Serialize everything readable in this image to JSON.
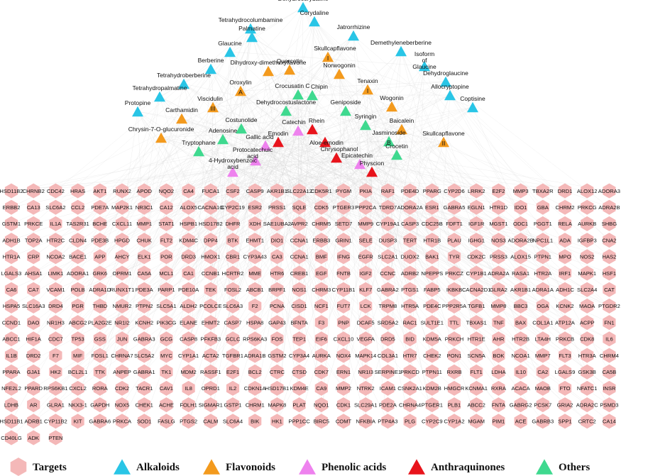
{
  "colors": {
    "targets": "#f4b8b8",
    "alkaloids": "#29c5e6",
    "flavonoids": "#f39a1d",
    "phenolic_acids": "#ee82ee",
    "anthraquinones": "#e8141c",
    "others": "#3fd98f",
    "edge": "#d4d4d4"
  },
  "legend": [
    {
      "label": "Targets",
      "shape": "hexagon",
      "color": "#f4b8b8"
    },
    {
      "label": "Alkaloids",
      "shape": "triangle",
      "color": "#29c5e6"
    },
    {
      "label": "Flavonoids",
      "shape": "triangle",
      "color": "#f39a1d"
    },
    {
      "label": "Phenolic acids",
      "shape": "triangle",
      "color": "#ee82ee"
    },
    {
      "label": "Anthraquinones",
      "shape": "triangle",
      "color": "#e8141c"
    },
    {
      "label": "Others",
      "shape": "triangle",
      "color": "#3fd98f"
    }
  ],
  "compounds": [
    {
      "label": "Dehydrocorydaline",
      "group": "alkaloids"
    },
    {
      "label": "Tetrahydrocolumbamine",
      "group": "alkaloids"
    },
    {
      "label": "Corydaline",
      "group": "alkaloids"
    },
    {
      "label": "Palmatine",
      "group": "alkaloids"
    },
    {
      "label": "Jatrorrhizine",
      "group": "alkaloids"
    },
    {
      "label": "Glaucine",
      "group": "alkaloids"
    },
    {
      "label": "Demethyleneberberine",
      "group": "alkaloids"
    },
    {
      "label": "Isoform of Glaucine",
      "group": "alkaloids"
    },
    {
      "label": "Berberine",
      "group": "alkaloids"
    },
    {
      "label": "Dehydroglaucine",
      "group": "alkaloids"
    },
    {
      "label": "Tetrahydroberberine",
      "group": "alkaloids"
    },
    {
      "label": "Allocryptopine",
      "group": "alkaloids"
    },
    {
      "label": "Tetrahydropalmatine",
      "group": "alkaloids"
    },
    {
      "label": "Protopine",
      "group": "alkaloids"
    },
    {
      "label": "Coptisine",
      "group": "alkaloids"
    },
    {
      "label": "Skullcapflavone I",
      "group": "flavonoids"
    },
    {
      "label": "Quercetin",
      "group": "flavonoids"
    },
    {
      "label": "Dihydroxy-dimethoxyflavone",
      "group": "flavonoids"
    },
    {
      "label": "Norwogonin",
      "group": "flavonoids"
    },
    {
      "label": "Oroxylin A",
      "group": "flavonoids"
    },
    {
      "label": "Tenaxin I",
      "group": "flavonoids"
    },
    {
      "label": "Viscidulin III",
      "group": "flavonoids"
    },
    {
      "label": "Wogonin",
      "group": "flavonoids"
    },
    {
      "label": "Carthamidin",
      "group": "flavonoids"
    },
    {
      "label": "Baicalein",
      "group": "flavonoids"
    },
    {
      "label": "Chrysin-7-O-glucuronide",
      "group": "flavonoids"
    },
    {
      "label": "Skullcapflavone II",
      "group": "flavonoids"
    },
    {
      "label": "Crocusatin C",
      "group": "others"
    },
    {
      "label": "Chipin",
      "group": "others"
    },
    {
      "label": "Dehydrocostuslactone",
      "group": "others"
    },
    {
      "label": "Geniposide",
      "group": "others"
    },
    {
      "label": "Costunolide",
      "group": "others"
    },
    {
      "label": "Adenosine",
      "group": "others"
    },
    {
      "label": "Syringin",
      "group": "others"
    },
    {
      "label": "Jasminoside B",
      "group": "others"
    },
    {
      "label": "Tryptophane",
      "group": "others"
    },
    {
      "label": "Crocetin",
      "group": "others"
    },
    {
      "label": "Catechin",
      "group": "phenolic_acids"
    },
    {
      "label": "Gallic acid",
      "group": "phenolic_acids"
    },
    {
      "label": "Protocatechuic acid",
      "group": "phenolic_acids"
    },
    {
      "label": "4-Hydroxybenzoic acid",
      "group": "phenolic_acids"
    },
    {
      "label": "Epicatechin",
      "group": "phenolic_acids"
    },
    {
      "label": "Rhein",
      "group": "anthraquinones"
    },
    {
      "label": "Emodin",
      "group": "anthraquinones"
    },
    {
      "label": "Aloe-emodin",
      "group": "anthraquinones"
    },
    {
      "label": "Chrysophanol",
      "group": "anthraquinones"
    },
    {
      "label": "Physcion",
      "group": "anthraquinones"
    }
  ],
  "targets": [
    [
      "HSD11B2",
      "CHRNB2",
      "CDC42",
      "HRAS",
      "AKT1",
      "RUNX2",
      "APOD",
      "NQO2",
      "CA4",
      "FUCA1",
      "CSF2",
      "CASP9",
      "AKR1B1",
      "SLC22A12",
      "CDK5R1",
      "PYGM",
      "PKIA",
      "RAF1",
      "PDE4D",
      "PPARG",
      "CYP2D6",
      "LRRK2",
      "E2F2",
      "MMP3",
      "TBXA2R",
      "DRD1",
      "ALOX12",
      "ADORA3"
    ],
    [
      "ERBB2",
      "CA13",
      "SLC6A2",
      "CCL2",
      "PDE7A",
      "MAP2K1",
      "NR3C1",
      "CA12",
      "ALOX5",
      "CACNA1G",
      "CYP2C19",
      "ESR2",
      "PRSS1",
      "SQLE",
      "CDK5",
      "PTGER3",
      "PPP2CA",
      "TDRD7",
      "ADORA2A",
      "ESR1",
      "GABRA5",
      "EGLN1",
      "HTR1D",
      "IDO1",
      "GBA",
      "CHRM2",
      "PRKCG",
      "ADRA2B"
    ],
    [
      "GSTM1",
      "PRKCE",
      "IL1A",
      "TAS2R31",
      "BCHE",
      "CXCL11",
      "MMP1",
      "STAT1",
      "HSPB1",
      "HSD17B2",
      "DHFR",
      "XDH",
      "SAE1UBA2",
      "AVPR2",
      "CHRM5",
      "SETD7",
      "MMP9",
      "CYP19A1",
      "CASP3",
      "CDC25B",
      "FDFT1",
      "IGF1R",
      "MGST1",
      "ODC1",
      "PGGT1",
      "RELA",
      "AURKB",
      "SHBG"
    ],
    [
      "ADH1B",
      "TOP2A",
      "HTR2C",
      "CLDN4",
      "PDE3B",
      "HPGD",
      "CHUK",
      "FLT2",
      "KDM4C",
      "DPP4",
      "BTK",
      "EHMT1",
      "DIO1",
      "CCNA1",
      "ERBB3",
      "GRIN1",
      "SELE",
      "DUSP3",
      "TERT",
      "HTR1B",
      "PLAU",
      "IGHG1",
      "NOS3",
      "ADORA2B",
      "NPC1L1",
      "ADA",
      "IGFBP3",
      "CNA2"
    ],
    [
      "HTR1A",
      "CRP",
      "NCOA2",
      "BACE1",
      "APP",
      "AHCY",
      "ELK1",
      "POR",
      "DRD3",
      "HMOX1",
      "CBR1",
      "CYP3A43",
      "CA3",
      "CCNA1",
      "BMF",
      "IFNG",
      "EGFR",
      "SLC2A1",
      "DUOX2",
      "BAK1",
      "TYR",
      "CDK2C",
      "PRSS3",
      "ALOX15",
      "PTPN1",
      "MPO",
      "NOS2",
      "HAS2"
    ],
    [
      "LGALS3",
      "AHSA1",
      "LIMK1",
      "ADORA1",
      "GRK6",
      "OPRM1",
      "CA5A",
      "MCL1",
      "CA1",
      "CCNB1",
      "HCRTR2",
      "MME",
      "HTR6",
      "CREB1",
      "EGF",
      "FNTB",
      "IGF2",
      "CCNC",
      "ADRB2",
      "NPEPPS",
      "PRKCZ",
      "CYP1B1",
      "ADRA2A",
      "RASA1",
      "HTR2A",
      "IRF1",
      "MAPK1",
      "HSF1"
    ],
    [
      "CA6",
      "CA7",
      "VCAM1",
      "POLB",
      "ADRA1D",
      "RUNX1T1",
      "PDE3A",
      "PARP1",
      "PDE10A",
      "TEK",
      "FOSL2",
      "ABCB1",
      "BRPF1",
      "NOS1",
      "CHRM3",
      "CYP11B1",
      "KLF7",
      "GABRA2",
      "PTGS1",
      "FABP5",
      "IKBKB",
      "CACNA2D1",
      "GLRA2",
      "AKR1B1",
      "ADRA1A",
      "ADH1C",
      "SLC2A4",
      "CAT"
    ],
    [
      "HSPA5",
      "SLC16A3",
      "DRD4",
      "PGR",
      "THBD",
      "NMUR2",
      "PTPN2",
      "SLC5A1",
      "ALDH2",
      "PCOLCE",
      "SLC6A3",
      "F2",
      "PCNA",
      "CISD1",
      "NCF1",
      "FUT7",
      "LCK",
      "TRPM8",
      "HTR5A",
      "PDE4C",
      "PPP2R5A",
      "TGFB1",
      "MMP8",
      "BBC3",
      "OGA",
      "KCNK2",
      "MAOA",
      "PTGDR2"
    ],
    [
      "CCND1",
      "DAO",
      "NR1H3",
      "ABCG2",
      "PLA2G2E",
      "NR1I2",
      "KCNH2",
      "PIK3CG",
      "ELANE",
      "EHMT2",
      "CASP7",
      "HSPA8",
      "GAP43",
      "BFNTA",
      "F3",
      "PNP",
      "DCAF5",
      "SRD5A2",
      "RAC1",
      "SULT1E1",
      "TTL",
      "TBXAS1",
      "TNF",
      "BAX",
      "COL1A1",
      "ATP12A",
      "ACPP",
      "FN1"
    ],
    [
      "ABCC1",
      "HIF1A",
      "CDC7",
      "TP53",
      "GSS",
      "JUN",
      "GABRA3",
      "GCG",
      "CASP8",
      "PFKFB3",
      "GCLC",
      "RPS6KA3",
      "FOS",
      "TEP1",
      "EIF6",
      "CXCL10",
      "VEGFA",
      "DRD5",
      "BID",
      "KDM5A",
      "PRKCH",
      "HTR1E",
      "AHR",
      "HTR2B",
      "LTA4H",
      "PRKCB",
      "CDK8",
      "IL6"
    ],
    [
      "IL1B",
      "DRD2",
      "F7",
      "MIF",
      "FOSL1",
      "CHRNA7",
      "SLC5A2",
      "MYC",
      "CYP1A1",
      "ACTA2",
      "TGFBR1",
      "ADRA1B",
      "GSTM2",
      "CYP3A4",
      "AURKA",
      "NOX4",
      "MAPK14",
      "COL3A1",
      "HTR7",
      "CHEK2",
      "PON1",
      "SCN5A",
      "BOK",
      "NCOA1",
      "MMP7",
      "FLT3",
      "HTR3A",
      "CHRM4"
    ],
    [
      "PPARA",
      "GJA1",
      "HK2",
      "BCL2L1",
      "TTK",
      "ANPEP",
      "GABRA1",
      "TK1",
      "MDM2",
      "RASSF1",
      "E2F1",
      "BCL2",
      "CTRC",
      "CTSD",
      "CDK7",
      "ERN1",
      "NR1I3",
      "SERPINE1",
      "PRKCD",
      "PTPN11",
      "RXRB",
      "FLT1",
      "LDHA",
      "IL10",
      "CA2",
      "LGALS9",
      "GSK3B",
      "CA5B"
    ],
    [
      "NFE2L2",
      "PPARD",
      "RPS6KB1",
      "CXCL2",
      "RORA",
      "CDK2",
      "TACR1",
      "CAV1",
      "IL8",
      "OPRD1",
      "IL2",
      "CDKN1A",
      "HSD17B1",
      "KDM4E",
      "CA9",
      "MMP2",
      "NTRK2",
      "ICAM1",
      "CSNK2A1",
      "KDM2B",
      "HMGCR",
      "KCNMA1",
      "RXRA",
      "ACACA",
      "MAOB",
      "FTO",
      "NFATC1",
      "INSR"
    ],
    [
      "LDHB",
      "AR",
      "GLRA1",
      "NKX3-1",
      "GAPDH",
      "NOX5",
      "CHEK1",
      "ACHE",
      "FOLH1",
      "SIGMAR1",
      "GSTP1",
      "CHRM1",
      "MAPK8",
      "PLAT",
      "NQO1",
      "CDK1",
      "SLC29A1",
      "PDE2A",
      "CHRNA4",
      "PTGER1",
      "PLB1",
      "ABCC2",
      "FNTA",
      "GABRG2",
      "PCSK7",
      "GRIA2",
      "ADRA2C",
      "PSMD3"
    ],
    [
      "HSD11B1",
      "ADRB1",
      "CYP11B2",
      "KIT",
      "GABRA6",
      "PRKCA",
      "SOD1",
      "FASLG",
      "PTGS2",
      "CALM",
      "SLC6A4",
      "BIK",
      "HK1",
      "PPP1CC",
      "BIRC5",
      "COMT",
      "NFKBIA",
      "PTP4A3",
      "PLG",
      "CYP2C9",
      "CYP1A2",
      "MGAM",
      "PIM1",
      "ACE",
      "GABRB3",
      "SPP1",
      "CRTC2",
      "CA14"
    ],
    [
      "CD40LG",
      "ADK",
      "PTEN"
    ]
  ]
}
